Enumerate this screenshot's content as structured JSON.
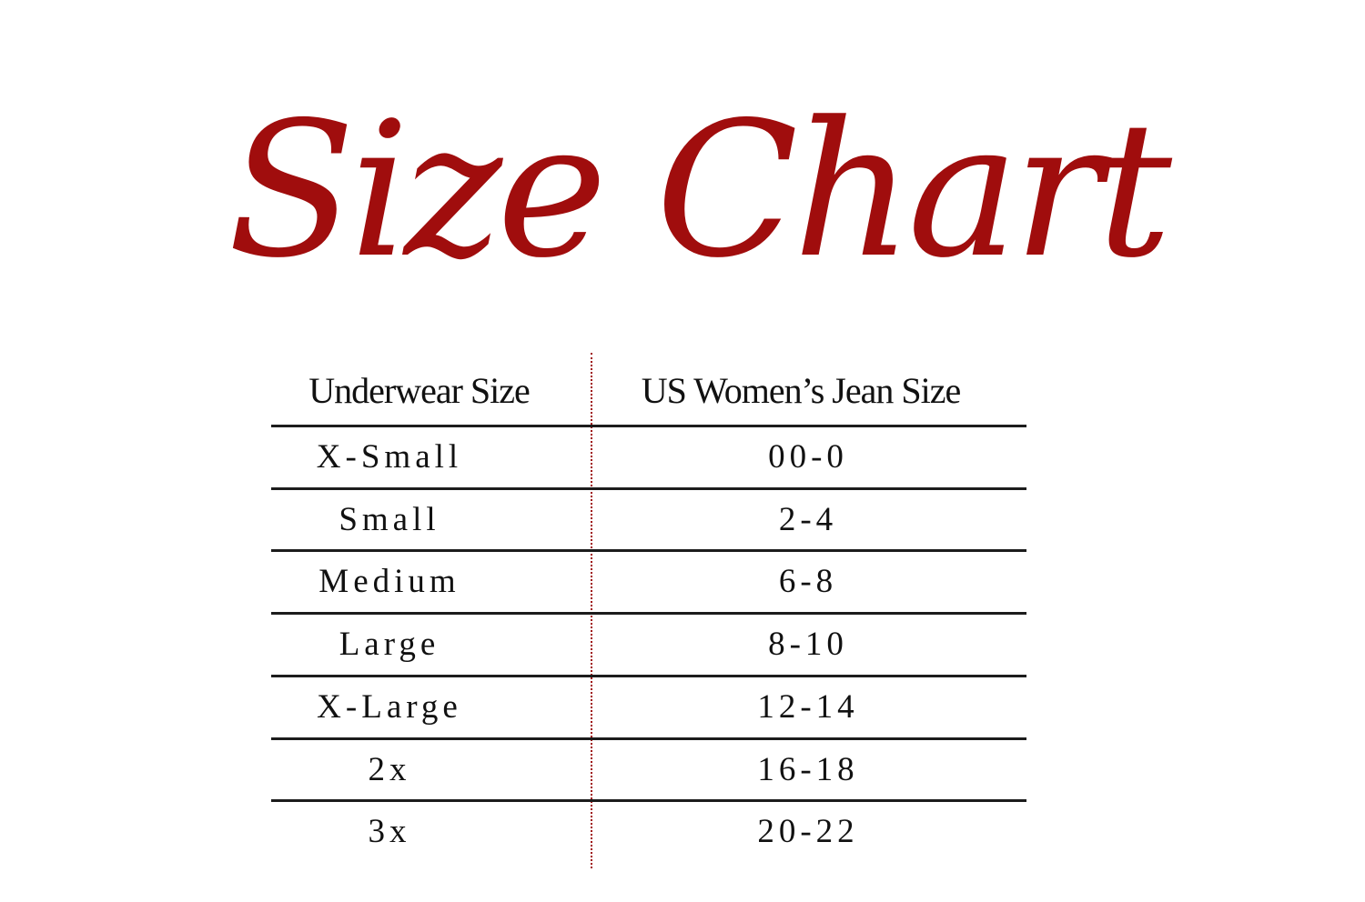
{
  "title": "Size Chart",
  "colors": {
    "title": "#a00d0d",
    "divider": "#a01818",
    "rules": "#1c1c1c"
  },
  "table": {
    "headers": [
      "Underwear Size",
      "US Women’s Jean Size"
    ],
    "rows": [
      [
        "X-Small",
        "00-0"
      ],
      [
        "Small",
        "2-4"
      ],
      [
        "Medium",
        "6-8"
      ],
      [
        "Large",
        "8-10"
      ],
      [
        "X-Large",
        "12-14"
      ],
      [
        "2x",
        "16-18"
      ],
      [
        "3x",
        "20-22"
      ]
    ]
  }
}
